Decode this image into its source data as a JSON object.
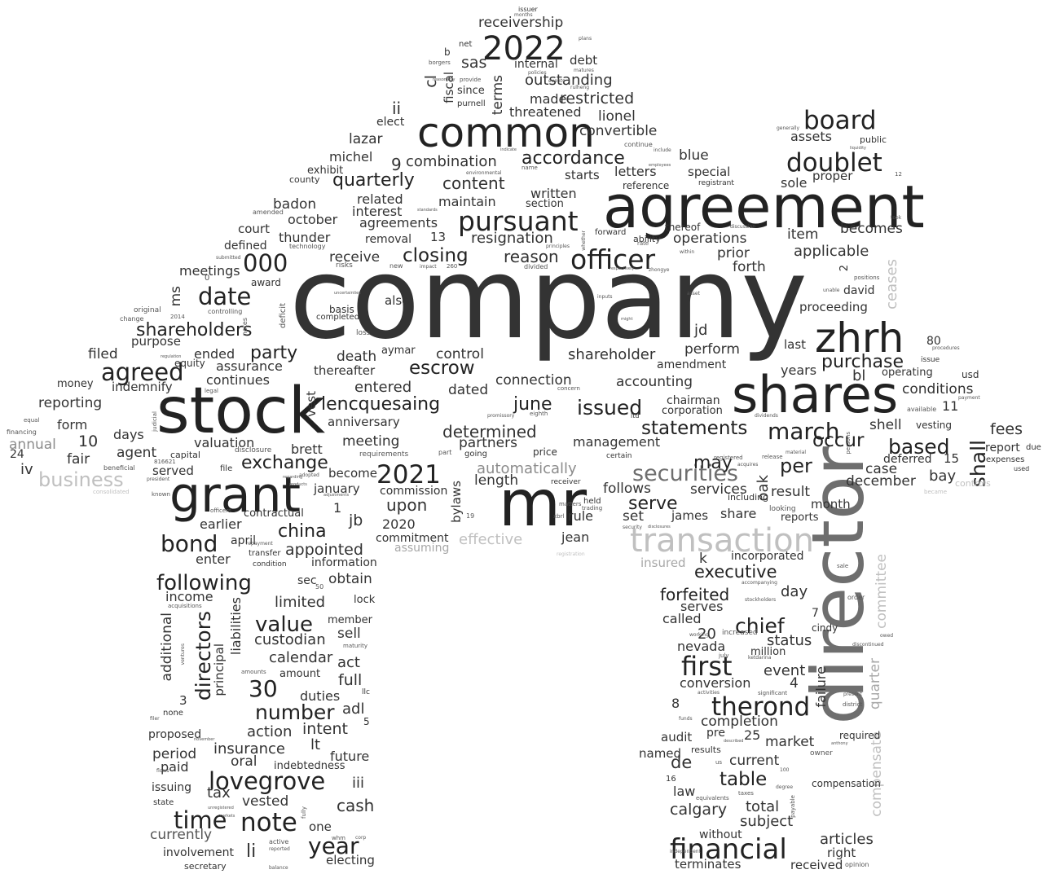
{
  "words": {
    "company": "company",
    "agreement": "agreement",
    "director": "director",
    "stock": "stock",
    "shares": "shares",
    "mr": "mr",
    "grant": "grant",
    "common": "common",
    "zhrh": "zhrh",
    "transaction": "transaction",
    "2022": "2022",
    "pursuant": "pursuant",
    "officer": "officer",
    "doublet": "doublet",
    "board": "board",
    "securities": "securities",
    "financial": "financial",
    "first": "first",
    "therond": "therond",
    "agreed": "agreed",
    "date": "date",
    "shareholders": "shareholders",
    "party": "party",
    "bond": "bond",
    "following": "following",
    "value": "value",
    "2021": "2021",
    "lencquesaing": "lencquesaing",
    "closing": "closing",
    "note": "note",
    "time": "time",
    "lovegrove": "lovegrove",
    "number": "number",
    "000": "000",
    "accordance": "accordance",
    "march": "march",
    "based": "based",
    "issued": "issued",
    "statements": "statements",
    "purchase": "purchase",
    "chief": "chief",
    "china": "china",
    "exchange": "exchange",
    "directors": "directors",
    "year": "year",
    "30": "30",
    "executive": "executive",
    "shall": "shall",
    "per": "per",
    "occur": "occur",
    "quarterly": "quarterly",
    "escrow": "escrow",
    "table": "table",
    "serve": "serve",
    "forfeited": "forfeited",
    "may": "may",
    "reason": "reason",
    "resignation": "resignation",
    "outstanding": "outstanding",
    "restricted": "restricted",
    "receivership": "receivership",
    "combination": "combination",
    "content": "content",
    "june": "june",
    "shareholder": "shareholder",
    "automatically": "automatically",
    "effective": "effective",
    "business": "business",
    "ceases": "ceases",
    "committee": "committee",
    "compensate": "compensate",
    "quarter": "quarter",
    "controls": "controls",
    "insured": "insured",
    "assuming": "assuming",
    "upon": "upon",
    "appointed": "appointed",
    "meeting": "meeting",
    "connection": "connection",
    "determined": "determined",
    "partners": "partners",
    "management": "management",
    "services": "services",
    "result": "result",
    "december": "december",
    "case": "case",
    "bay": "bay",
    "fees": "fees",
    "report": "report",
    "expenses": "expenses",
    "conditions": "conditions",
    "operating": "operating",
    "usd": "usd",
    "shell": "shell",
    "deferred": "deferred",
    "vesting": "vesting",
    "available": "available",
    "due": "due",
    "used": "used",
    "applicable": "applicable",
    "item": "item",
    "becomes": "becomes",
    "operations": "operations",
    "prior": "prior",
    "forth": "forth",
    "proper": "proper",
    "sole": "sole",
    "assets": "assets",
    "public": "public",
    "proceeding": "proceeding",
    "david": "david",
    "years": "years",
    "last": "last",
    "perform": "perform",
    "amendment": "amendment",
    "accounting": "accounting",
    "chairman": "chairman",
    "corporation": "corporation",
    "jd": "jd",
    "bl": "bl",
    "80": "80",
    "11": "11",
    "15": "15",
    "issue": "issue",
    "procedures": "procedures",
    "payment": "payment",
    "oak": "oak",
    "month": "month",
    "reports": "reports",
    "share": "share",
    "including": "including",
    "james": "james",
    "set": "set",
    "rule": "rule",
    "follows": "follows",
    "jean": "jean",
    "length": "length",
    "commission": "commission",
    "commitment": "commitment",
    "bylaws": "bylaws",
    "2020": "2020",
    "jb": "jb",
    "1": "1",
    "information": "information",
    "enter": "enter",
    "january": "january",
    "become": "become",
    "earlier": "earlier",
    "contractual": "contractual",
    "april": "april",
    "brett": "brett",
    "served": "served",
    "agent": "agent",
    "fair": "fair",
    "days": "days",
    "10": "10",
    "form": "form",
    "reporting": "reporting",
    "money": "money",
    "indemnify": "indemnify",
    "filed": "filed",
    "annual": "annual",
    "iv": "iv",
    "24": "24",
    "financing": "financing",
    "equal": "equal",
    "valuation": "valuation",
    "continues": "continues",
    "assurance": "assurance",
    "ended": "ended",
    "equity": "equity",
    "death": "death",
    "thereafter": "thereafter",
    "entered": "entered",
    "dated": "dated",
    "anniversary": "anniversary",
    "vest": "vest",
    "aymar": "aymar",
    "control": "control",
    "basis": "basis",
    "completed": "completed",
    "also": "also",
    "purpose": "purpose",
    "ms": "ms",
    "meetings": "meetings",
    "award": "award",
    "court": "court",
    "defined": "defined",
    "removal": "removal",
    "receive": "receive",
    "thunder": "thunder",
    "badon": "badon",
    "october": "october",
    "agreements": "agreements",
    "related": "related",
    "interest": "interest",
    "maintain": "maintain",
    "section": "section",
    "written": "written",
    "starts": "starts",
    "letters": "letters",
    "special": "special",
    "reference": "reference",
    "blue": "blue",
    "thereof": "thereof",
    "forward": "forward",
    "ability": "ability",
    "registrant": "registrant",
    "exhibit": "exhibit",
    "michel": "michel",
    "county": "county",
    "lazar": "lazar",
    "9": "9",
    "elect": "elect",
    "ii": "ii",
    "cl": "cl",
    "fiscal": "fiscal",
    "terms": "terms",
    "sas": "sas",
    "since": "since",
    "purnell": "purnell",
    "made": "made",
    "threatened": "threatened",
    "lionel": "lionel",
    "convertible": "convertible",
    "debt": "debt",
    "internal": "internal",
    "net": "net",
    "b": "b",
    "issuer": "issuer",
    "months": "months",
    "13": "13",
    "6": "6",
    "2": "2",
    "income": "income",
    "additional": "additional",
    "principal": "principal",
    "liabilities": "liabilities",
    "sec": "sec",
    "obtain": "obtain",
    "limited": "limited",
    "custodian": "custodian",
    "member": "member",
    "sell": "sell",
    "calendar": "calendar",
    "act": "act",
    "amount": "amount",
    "full": "full",
    "duties": "duties",
    "adl": "adl",
    "action": "action",
    "intent": "intent",
    "lt": "lt",
    "insurance": "insurance",
    "future": "future",
    "indebtedness": "indebtedness",
    "oral": "oral",
    "period": "period",
    "paid": "paid",
    "issuing": "issuing",
    "tax": "tax",
    "iii": "iii",
    "vested": "vested",
    "cash": "cash",
    "state": "state",
    "currently": "currently",
    "one": "one",
    "li": "li",
    "involvement": "involvement",
    "electing": "electing",
    "secretary": "secretary",
    "proposed": "proposed",
    "none": "none",
    "3": "3",
    "5": "5",
    "lock": "lock",
    "llc": "llc",
    "maturity": "maturity",
    "called": "called",
    "serves": "serves",
    "20": "20",
    "nevada": "nevada",
    "status": "status",
    "million": "million",
    "event": "event",
    "4": "4",
    "conversion": "conversion",
    "8": "8",
    "completion": "completion",
    "audit": "audit",
    "pre": "pre",
    "25": "25",
    "market": "market",
    "de": "de",
    "current": "current",
    "results": "results",
    "law": "law",
    "calgary": "calgary",
    "total": "total",
    "subject": "subject",
    "without": "without",
    "terminates": "terminates",
    "articles": "articles",
    "right": "right",
    "received": "received",
    "compensation": "compensation",
    "required": "required",
    "failure": "failure",
    "day": "day",
    "cindy": "cindy",
    "7": "7",
    "k": "k",
    "incorporated": "incorporated",
    "named": "named",
    "16": "16",
    "increased": "increased",
    "significant": "significant",
    "owner": "owner",
    "order": "order",
    "positions": "positions",
    "unable": "unable",
    "opinion": "opinion",
    "12": "12",
    "sale": "sale",
    "taxes": "taxes",
    "equivalents": "equivalents",
    "independent": "independent",
    "provide": "provide",
    "policies": "policies",
    "original": "original",
    "change": "change",
    "2014": "2014",
    "controlling": "controlling",
    "technology": "technology",
    "amended": "amended",
    "submitted": "submitted",
    "0": "0",
    "risks": "risks",
    "new": "new",
    "260": "260",
    "divided": "divided",
    "impact": "impact",
    "principles": "principles",
    "concern": "concern",
    "eighth": "eighth",
    "price": "price",
    "receiver": "receiver",
    "held": "held",
    "matters": "matters",
    "certain": "certain",
    "registered": "registered",
    "material": "material",
    "going": "going",
    "part": "part",
    "requirements": "requirements",
    "19": "19",
    "disclosure": "disclosure",
    "capital": "capital",
    "beneficial": "beneficial",
    "816621": "816621",
    "file": "file",
    "legal": "legal",
    "judicial": "judicial",
    "president": "president",
    "known": "known",
    "officers": "officers",
    "transfer": "transfer",
    "condition": "condition",
    "acquisitions": "acquisitions",
    "50": "50",
    "loss": "loss",
    "deficit": "deficit",
    "dividends": "dividends",
    "release": "release",
    "looking": "looking",
    "within": "within",
    "inputs": "inputs",
    "asset": "asset",
    "rate": "rate",
    "zhongye": "zhongye",
    "accompanying": "accompanying",
    "stockholders": "stockholders",
    "discontinued": "discontinued",
    "owed": "owed",
    "july": "july",
    "ketdarina": "ketdarina",
    "working": "working",
    "activities": "activities",
    "funds": "funds",
    "us": "us",
    "present": "present",
    "district": "district",
    "anthony": "anthony",
    "described": "described",
    "100": "100",
    "payable": "payable",
    "degree": "degree",
    "whm": "whm",
    "corp": "corp",
    "active": "active",
    "reported": "reported",
    "balance": "balance",
    "fully": "fully",
    "unregistered": "unregistered",
    "markets": "markets",
    "ventures": "ventures",
    "flows": "flows",
    "filer": "filer",
    "november": "november",
    "repayment": "repayment",
    "adopted": "adopted",
    "products": "products",
    "regarding": "regarding",
    "uncertainties": "uncertainties",
    "discussion": "discussion",
    "took": "took",
    "generally": "generally",
    "include": "include",
    "liquidity": "liquidity",
    "employees": "employees",
    "trading": "trading",
    "xbrl": "xbrl",
    "security": "security",
    "disclosures": "disclosures",
    "registration": "registration",
    "became": "became",
    "consolidated": "consolidated",
    "persons": "persons",
    "promissory": "promissory",
    "acquires": "acquires",
    "notes": "notes",
    "ltd": "ltd",
    "continue": "continue",
    "plans": "plans",
    "borgers": "borgers",
    "events": "events",
    "matures": "matures",
    "environmental": "environmental",
    "name": "name",
    "respectively": "respectively",
    "standards": "standards",
    "amounts": "amounts",
    "adjustments": "adjustments",
    "regulation": "regulation",
    "whether": "whether",
    "might": "might",
    "reasonably": "reasonably",
    "indicate": "indicate",
    "rulheng": "rulheng"
  }
}
